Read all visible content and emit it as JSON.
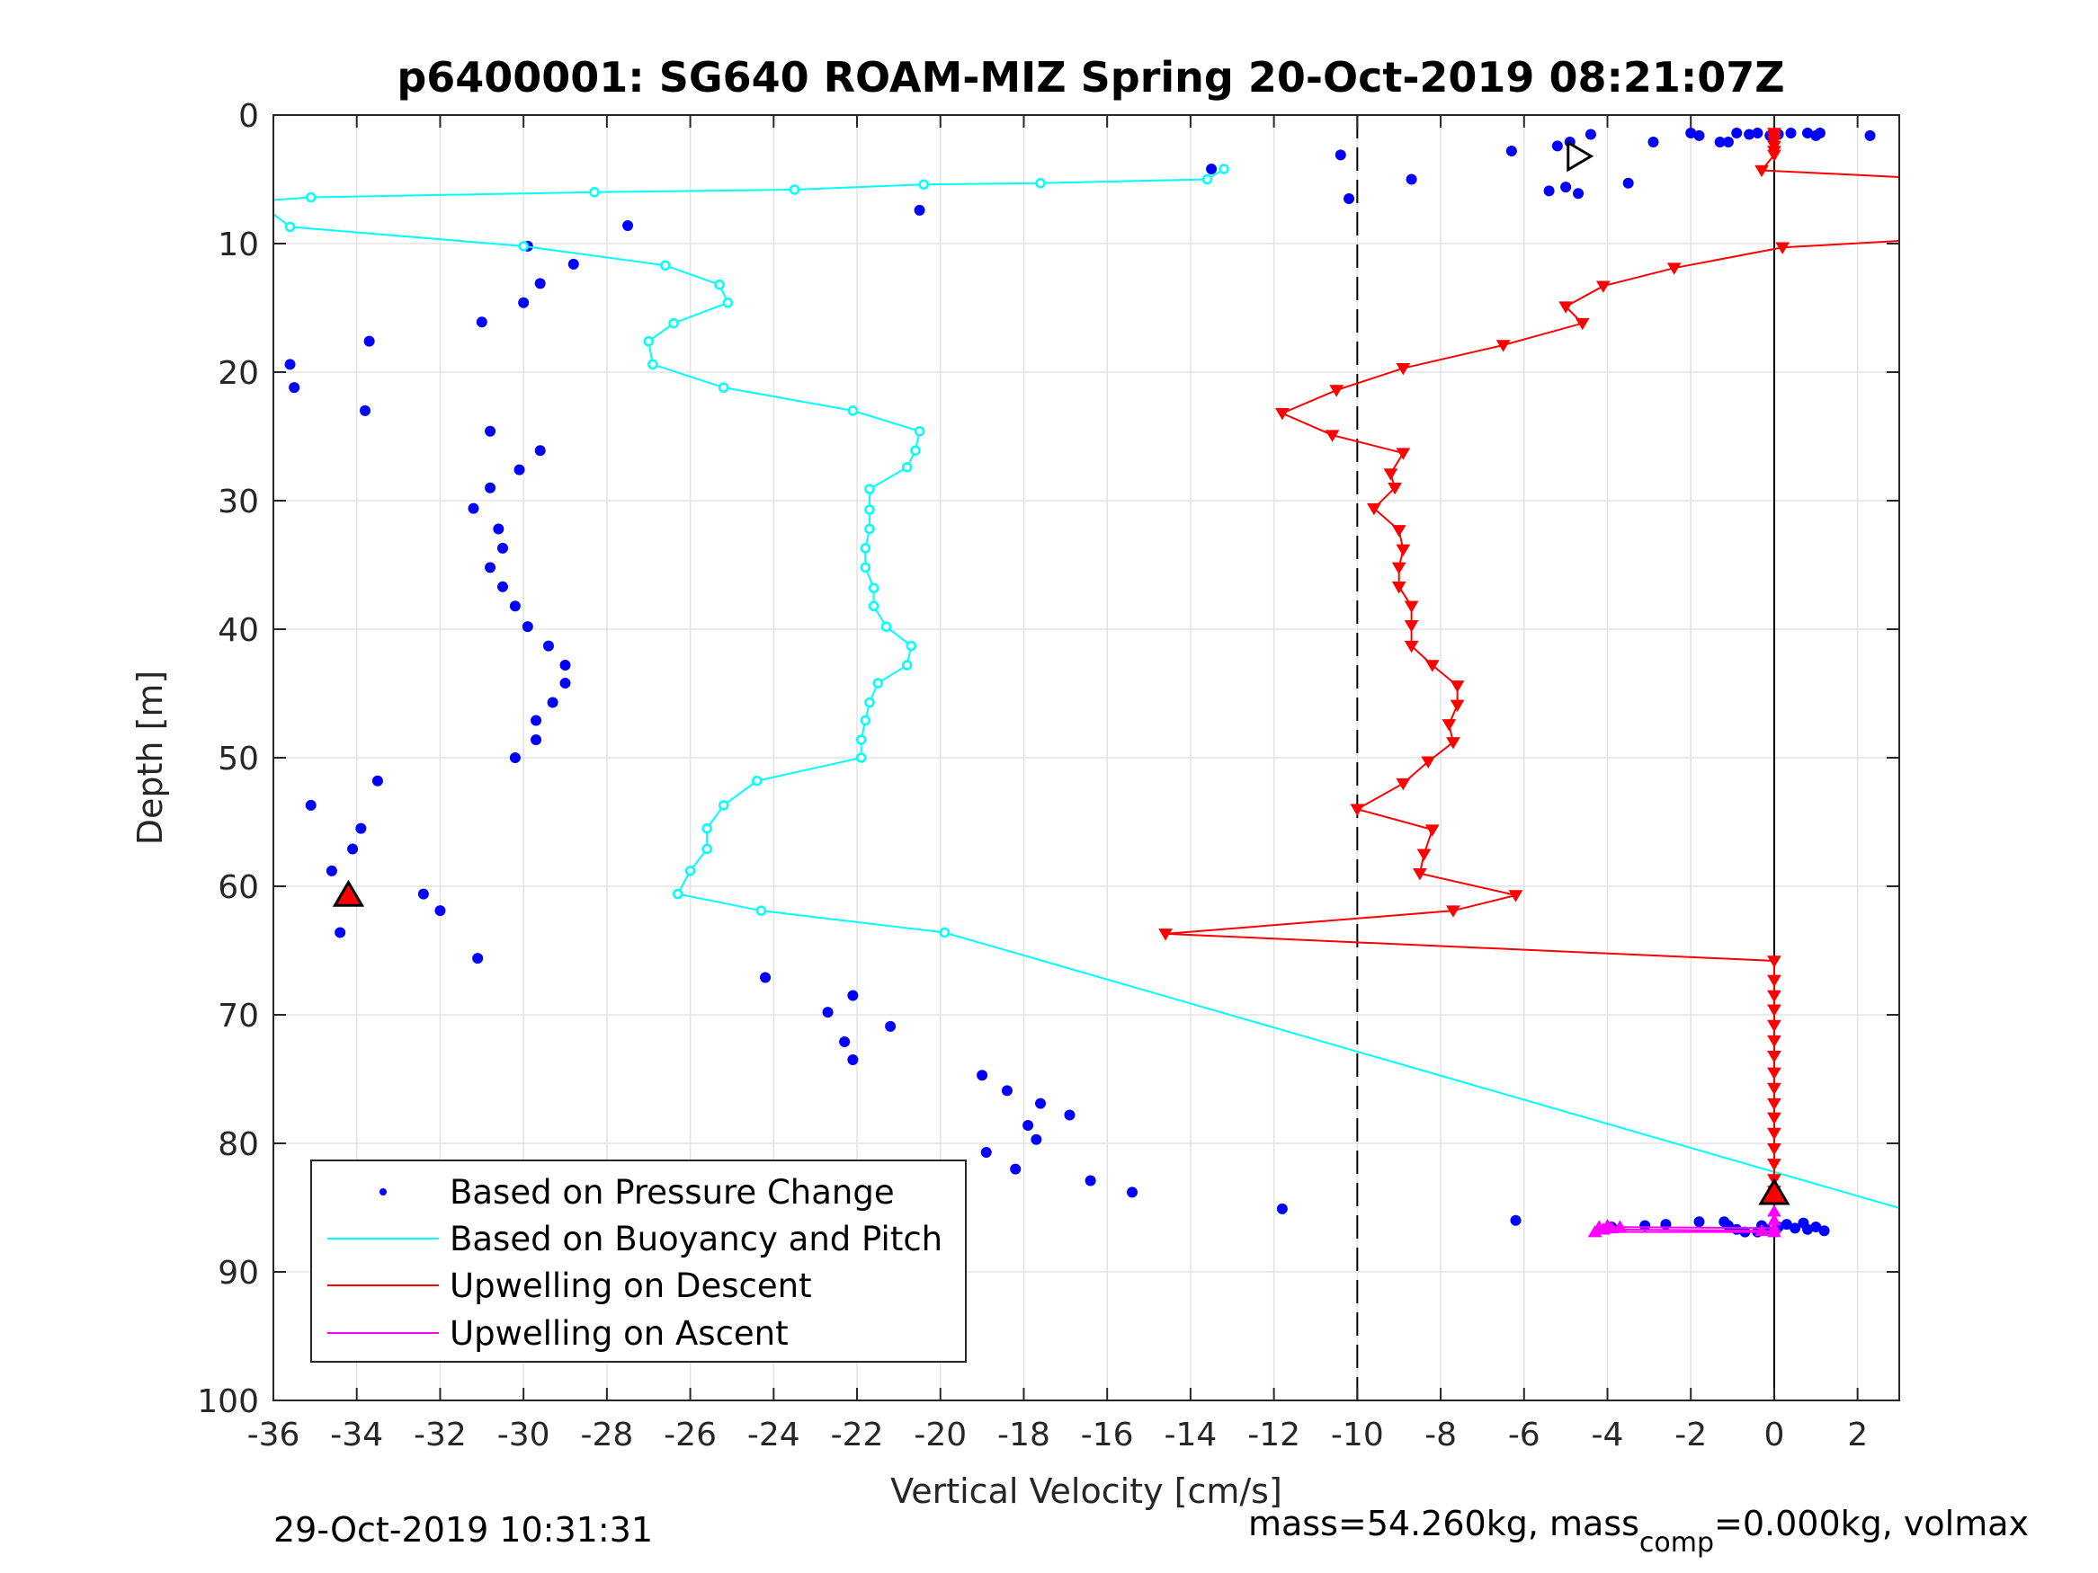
{
  "chart_data": {
    "type": "scatter",
    "title": "p6400001: SG640 ROAM-MIZ Spring 20-Oct-2019 08:21:07Z",
    "xlabel": "Vertical Velocity [cm/s]",
    "ylabel": "Depth [m]",
    "xlim": [
      -36,
      3
    ],
    "ylim": [
      0,
      100
    ],
    "y_reversed": true,
    "grid": true,
    "legend_position": "bottom-left",
    "x_ticks": [
      "-36",
      "-34",
      "-32",
      "-30",
      "-28",
      "-26",
      "-24",
      "-22",
      "-20",
      "-18",
      "-16",
      "-14",
      "-12",
      "-10",
      "-8",
      "-6",
      "-4",
      "-2",
      "0",
      "2"
    ],
    "y_ticks": [
      "0",
      "10",
      "20",
      "30",
      "40",
      "50",
      "60",
      "70",
      "80",
      "90",
      "100"
    ],
    "reference_lines": [
      {
        "x": -10,
        "style": "dashed",
        "color": "#000000"
      },
      {
        "x": 0,
        "style": "solid",
        "color": "#000000"
      }
    ],
    "series": [
      {
        "name": "Based on Pressure Change",
        "style": "dots",
        "color": "#0000ff",
        "points": [
          [
            2.3,
            1.6
          ],
          [
            1.1,
            1.4
          ],
          [
            1.0,
            1.6
          ],
          [
            0.8,
            1.4
          ],
          [
            0.4,
            1.4
          ],
          [
            0.1,
            1.5
          ],
          [
            -0.1,
            1.6
          ],
          [
            -0.4,
            1.4
          ],
          [
            -0.6,
            1.5
          ],
          [
            -0.9,
            1.4
          ],
          [
            -1.1,
            2.1
          ],
          [
            -1.3,
            2.1
          ],
          [
            -1.8,
            1.6
          ],
          [
            -2.0,
            1.4
          ],
          [
            -2.9,
            2.1
          ],
          [
            -4.4,
            1.5
          ],
          [
            -4.9,
            2.1
          ],
          [
            -5.2,
            2.4
          ],
          [
            -6.3,
            2.8
          ],
          [
            -10.4,
            3.1
          ],
          [
            -13.5,
            4.2
          ],
          [
            -8.7,
            5.0
          ],
          [
            -3.5,
            5.3
          ],
          [
            -5.0,
            5.6
          ],
          [
            -5.4,
            5.9
          ],
          [
            -4.7,
            6.1
          ],
          [
            -10.2,
            6.5
          ],
          [
            -20.5,
            7.4
          ],
          [
            -27.5,
            8.6
          ],
          [
            -29.9,
            10.2
          ],
          [
            -28.8,
            11.6
          ],
          [
            -29.6,
            13.1
          ],
          [
            -30.0,
            14.6
          ],
          [
            -31.0,
            16.1
          ],
          [
            -33.7,
            17.6
          ],
          [
            -35.6,
            19.4
          ],
          [
            -35.5,
            21.2
          ],
          [
            -33.8,
            23.0
          ],
          [
            -30.8,
            24.6
          ],
          [
            -29.6,
            26.1
          ],
          [
            -30.1,
            27.6
          ],
          [
            -30.8,
            29.0
          ],
          [
            -31.2,
            30.6
          ],
          [
            -30.6,
            32.2
          ],
          [
            -30.5,
            33.7
          ],
          [
            -30.8,
            35.2
          ],
          [
            -30.5,
            36.7
          ],
          [
            -30.2,
            38.2
          ],
          [
            -29.9,
            39.8
          ],
          [
            -29.4,
            41.3
          ],
          [
            -29.0,
            42.8
          ],
          [
            -29.0,
            44.2
          ],
          [
            -29.3,
            45.7
          ],
          [
            -29.7,
            47.1
          ],
          [
            -29.7,
            48.6
          ],
          [
            -30.2,
            50.0
          ],
          [
            -33.5,
            51.8
          ],
          [
            -35.1,
            53.7
          ],
          [
            -33.9,
            55.5
          ],
          [
            -34.1,
            57.1
          ],
          [
            -34.6,
            58.8
          ],
          [
            -32.4,
            60.6
          ],
          [
            -32.0,
            61.9
          ],
          [
            -34.4,
            63.6
          ],
          [
            -31.1,
            65.6
          ],
          [
            -24.2,
            67.1
          ],
          [
            -22.1,
            68.5
          ],
          [
            -22.7,
            69.8
          ],
          [
            -21.2,
            70.9
          ],
          [
            -22.3,
            72.1
          ],
          [
            -22.1,
            73.5
          ],
          [
            -19.0,
            74.7
          ],
          [
            -18.4,
            75.9
          ],
          [
            -17.6,
            76.9
          ],
          [
            -16.9,
            77.8
          ],
          [
            -17.9,
            78.6
          ],
          [
            -17.7,
            79.7
          ],
          [
            -18.9,
            80.7
          ],
          [
            -18.2,
            82.0
          ],
          [
            -16.4,
            82.9
          ],
          [
            -15.4,
            83.8
          ],
          [
            -11.8,
            85.1
          ],
          [
            -6.2,
            86.0
          ],
          [
            -1.8,
            86.1
          ],
          [
            -1.2,
            86.1
          ],
          [
            -0.9,
            86.7
          ],
          [
            -0.7,
            86.9
          ],
          [
            -0.4,
            86.9
          ],
          [
            -0.3,
            86.4
          ],
          [
            -0.2,
            86.7
          ],
          [
            0.0,
            86.9
          ],
          [
            0.1,
            86.5
          ],
          [
            0.3,
            86.3
          ],
          [
            0.5,
            86.6
          ],
          [
            0.7,
            86.2
          ],
          [
            0.8,
            86.7
          ],
          [
            1.0,
            86.5
          ],
          [
            1.2,
            86.8
          ],
          [
            -1.1,
            86.4
          ],
          [
            -2.6,
            86.3
          ],
          [
            -3.1,
            86.4
          ],
          [
            -3.9,
            86.5
          ]
        ]
      },
      {
        "name": "Based on Buoyancy and Pitch",
        "style": "line-circles",
        "color": "#00ffff",
        "points": [
          [
            -13.2,
            4.2
          ],
          [
            -13.6,
            5.0
          ],
          [
            -17.6,
            5.3
          ],
          [
            -20.4,
            5.4
          ],
          [
            -23.5,
            5.8
          ],
          [
            -28.3,
            6.0
          ],
          [
            -35.1,
            6.4
          ],
          [
            -36.4,
            6.7
          ],
          [
            -35.6,
            8.7
          ],
          [
            -30.0,
            10.2
          ],
          [
            -26.6,
            11.7
          ],
          [
            -25.3,
            13.2
          ],
          [
            -25.1,
            14.6
          ],
          [
            -26.4,
            16.2
          ],
          [
            -27.0,
            17.6
          ],
          [
            -26.9,
            19.4
          ],
          [
            -25.2,
            21.2
          ],
          [
            -22.1,
            23.0
          ],
          [
            -20.5,
            24.6
          ],
          [
            -20.6,
            26.1
          ],
          [
            -20.8,
            27.4
          ],
          [
            -21.7,
            29.1
          ],
          [
            -21.7,
            30.7
          ],
          [
            -21.7,
            32.2
          ],
          [
            -21.8,
            33.7
          ],
          [
            -21.8,
            35.2
          ],
          [
            -21.6,
            36.8
          ],
          [
            -21.6,
            38.2
          ],
          [
            -21.3,
            39.8
          ],
          [
            -20.7,
            41.3
          ],
          [
            -20.8,
            42.8
          ],
          [
            -21.5,
            44.2
          ],
          [
            -21.7,
            45.7
          ],
          [
            -21.8,
            47.1
          ],
          [
            -21.9,
            48.6
          ],
          [
            -21.9,
            50.0
          ],
          [
            -24.4,
            51.8
          ],
          [
            -25.2,
            53.7
          ],
          [
            -25.6,
            55.5
          ],
          [
            -25.6,
            57.1
          ],
          [
            -26.0,
            58.8
          ],
          [
            -26.3,
            60.6
          ],
          [
            -24.3,
            61.9
          ],
          [
            -19.9,
            63.6
          ],
          [
            3.5,
            85.5
          ]
        ]
      },
      {
        "name": "Upwelling on Descent",
        "style": "line-triangles-down",
        "color": "#ff0000",
        "points": [
          [
            0.0,
            1.4
          ],
          [
            0.0,
            1.7
          ],
          [
            0.0,
            2.0
          ],
          [
            0.0,
            2.4
          ],
          [
            0.0,
            2.8
          ],
          [
            0.0,
            3.1
          ],
          [
            -0.3,
            4.3
          ],
          [
            3.5,
            4.9
          ],
          [
            3.5,
            9.7
          ],
          [
            0.2,
            10.3
          ],
          [
            -2.4,
            11.9
          ],
          [
            -4.1,
            13.3
          ],
          [
            -5.0,
            14.9
          ],
          [
            -4.6,
            16.2
          ],
          [
            -6.5,
            17.9
          ],
          [
            -8.9,
            19.7
          ],
          [
            -10.5,
            21.4
          ],
          [
            -11.8,
            23.2
          ],
          [
            -10.6,
            24.9
          ],
          [
            -8.9,
            26.3
          ],
          [
            -9.2,
            27.9
          ],
          [
            -9.1,
            29.0
          ],
          [
            -9.6,
            30.6
          ],
          [
            -9.0,
            32.3
          ],
          [
            -8.9,
            33.8
          ],
          [
            -9.0,
            35.2
          ],
          [
            -9.0,
            36.7
          ],
          [
            -8.7,
            38.2
          ],
          [
            -8.7,
            39.7
          ],
          [
            -8.7,
            41.3
          ],
          [
            -8.2,
            42.8
          ],
          [
            -7.6,
            44.4
          ],
          [
            -7.6,
            45.9
          ],
          [
            -7.8,
            47.4
          ],
          [
            -7.7,
            48.8
          ],
          [
            -8.3,
            50.3
          ],
          [
            -8.9,
            52.0
          ],
          [
            -10.0,
            54.0
          ],
          [
            -8.2,
            55.6
          ],
          [
            -8.4,
            57.5
          ],
          [
            -8.5,
            59.0
          ],
          [
            -6.2,
            60.7
          ],
          [
            -7.7,
            61.9
          ],
          [
            -14.6,
            63.7
          ],
          [
            0.0,
            65.8
          ],
          [
            0.0,
            67.3
          ],
          [
            0.0,
            68.5
          ],
          [
            0.0,
            69.6
          ],
          [
            0.0,
            70.8
          ],
          [
            0.0,
            72.0
          ],
          [
            0.0,
            73.2
          ],
          [
            0.0,
            74.5
          ],
          [
            0.0,
            75.7
          ],
          [
            0.0,
            76.9
          ],
          [
            0.0,
            78.0
          ],
          [
            0.0,
            79.2
          ],
          [
            0.0,
            80.4
          ],
          [
            0.0,
            81.6
          ],
          [
            0.0,
            82.8
          ],
          [
            0.0,
            83.7
          ]
        ]
      },
      {
        "name": "Upwelling on Ascent",
        "style": "line-triangles-up",
        "color": "#ff00ff",
        "points": [
          [
            0.0,
            85.3
          ],
          [
            0.0,
            86.0
          ],
          [
            0.0,
            86.6
          ],
          [
            -4.2,
            86.5
          ],
          [
            -4.0,
            86.4
          ],
          [
            -3.9,
            86.6
          ],
          [
            -3.7,
            86.5
          ],
          [
            -4.1,
            86.7
          ],
          [
            -0.3,
            86.8
          ],
          [
            0.0,
            86.9
          ],
          [
            -4.3,
            86.9
          ]
        ]
      }
    ],
    "markers": [
      {
        "type": "triangle-up",
        "fill": "#ff0000",
        "x": -34.2,
        "y": 60.7
      },
      {
        "type": "triangle-right",
        "fill": "#ffffff",
        "x": -4.7,
        "y": 3.2
      },
      {
        "type": "triangle-up",
        "fill": "#ff0000",
        "x": 0.0,
        "y": 83.9
      }
    ]
  },
  "footer": {
    "timestamp": "29-Oct-2019 10:31:31",
    "mass_prefix": "mass=54.260kg, mass",
    "mass_subscript": "comp",
    "mass_suffix": "=0.000kg, volmax"
  }
}
